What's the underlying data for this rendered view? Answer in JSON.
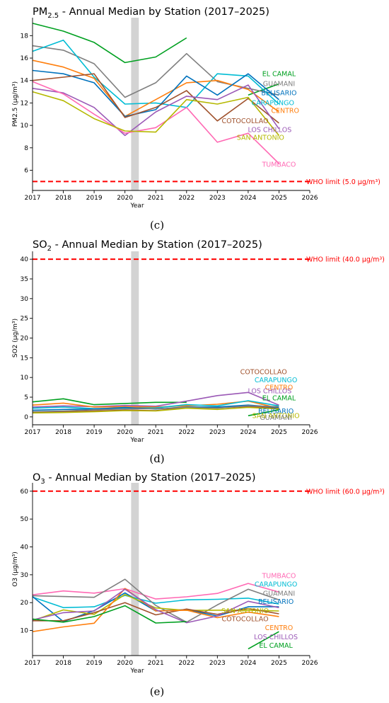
{
  "colors": {
    "EL CAMAL": "#00a020",
    "GUAMANI": "#7f7f7f",
    "BELISARIO": "#0072bd",
    "CARAPUNGO": "#00bcd4",
    "CENTRO": "#ff7f0e",
    "COTOCOLLAO": "#a0522d",
    "LOS CHILLOS": "#9b59b6",
    "SAN ANTONIO": "#b5b800",
    "TUMBACO": "#ff69b4",
    "who_line": "#ff0000",
    "covid_band": "#d3d3d3"
  },
  "chart_data": [
    {
      "type": "line",
      "panel_label": "(c)",
      "title_main": "PM",
      "title_sub": "2.5",
      "title_rest": " - Annual Median by Station (2017–2025)",
      "xlabel": "Year",
      "ylabel": "PM2.5 (µg/m³)",
      "xlim": [
        2017,
        2026
      ],
      "ylim": [
        4.2,
        19.6
      ],
      "xticks": [
        2017,
        2018,
        2019,
        2020,
        2021,
        2022,
        2023,
        2024,
        2025,
        2026
      ],
      "yticks": [
        6,
        8,
        10,
        12,
        14,
        16,
        18
      ],
      "reference_line": {
        "value": 5.0,
        "label": "WHO limit (5.0 µg/m³)"
      },
      "shaded_span": [
        2020.2,
        2020.45
      ],
      "series": [
        {
          "name": "EL CAMAL",
          "x": [
            2017,
            2018,
            2019,
            2020,
            2021,
            2022
          ],
          "values": [
            19.1,
            18.4,
            17.4,
            15.6,
            16.1,
            17.8
          ]
        },
        {
          "name": "EL CAMAL",
          "x": [
            2024,
            2025
          ],
          "values": [
            12.7,
            13.7
          ]
        },
        {
          "name": "GUAMANI",
          "x": [
            2017,
            2018,
            2019,
            2020,
            2021,
            2022,
            2023,
            2024,
            2025
          ],
          "values": [
            17.1,
            16.7,
            15.5,
            12.5,
            13.8,
            16.4,
            13.9,
            13.3,
            12.7
          ]
        },
        {
          "name": "CARAPUNGO",
          "x": [
            2017,
            2018,
            2019,
            2020,
            2021,
            2022,
            2023,
            2024,
            2025
          ],
          "values": [
            16.6,
            17.6,
            14.3,
            11.9,
            12.0,
            11.6,
            14.6,
            14.4,
            11.9
          ]
        },
        {
          "name": "CENTRO",
          "x": [
            2017,
            2018,
            2019,
            2020,
            2021,
            2022,
            2023,
            2024,
            2025
          ],
          "values": [
            15.8,
            15.2,
            14.2,
            10.8,
            12.3,
            13.8,
            14.0,
            13.2,
            11.2
          ]
        },
        {
          "name": "BELISARIO",
          "x": [
            2017,
            2018,
            2019,
            2020,
            2021,
            2022,
            2023,
            2024,
            2025
          ],
          "values": [
            14.9,
            14.6,
            13.8,
            10.8,
            11.4,
            14.4,
            12.7,
            14.6,
            12.3
          ]
        },
        {
          "name": "COTOCOLLAO",
          "x": [
            2017,
            2018,
            2019,
            2020,
            2021,
            2022,
            2023,
            2024,
            2025
          ],
          "values": [
            14.0,
            14.3,
            14.6,
            10.7,
            11.6,
            13.1,
            10.4,
            12.4,
            10.2
          ]
        },
        {
          "name": "LOS CHILLOS",
          "x": [
            2017,
            2018,
            2019,
            2020,
            2021,
            2022,
            2023,
            2024,
            2025
          ],
          "values": [
            13.3,
            12.9,
            11.6,
            9.1,
            11.2,
            12.6,
            12.3,
            13.6,
            9.7
          ]
        },
        {
          "name": "TUMBACO",
          "x": [
            2017,
            2018,
            2019,
            2020,
            2021,
            2022,
            2023,
            2024,
            2025
          ],
          "values": [
            13.9,
            12.8,
            11.0,
            9.3,
            9.8,
            11.6,
            8.5,
            9.3,
            6.6
          ]
        },
        {
          "name": "SAN ANTONIO",
          "x": [
            2017,
            2018,
            2019,
            2020,
            2021,
            2022,
            2023,
            2024,
            2025
          ],
          "values": [
            13.0,
            12.2,
            10.6,
            9.5,
            9.4,
            12.3,
            11.9,
            12.5,
            9.1
          ]
        }
      ],
      "labels": [
        {
          "text": "EL CAMAL",
          "color": "EL CAMAL",
          "x": 2025.0,
          "y": 14.4
        },
        {
          "text": "GUAMANI",
          "color": "GUAMANI",
          "x": 2025.0,
          "y": 13.5
        },
        {
          "text": "BELISARIO",
          "color": "BELISARIO",
          "x": 2025.0,
          "y": 12.7
        },
        {
          "text": "CARAPUNGO",
          "color": "CARAPUNGO",
          "x": 2024.8,
          "y": 11.8
        },
        {
          "text": "CENTRO",
          "color": "CENTRO",
          "x": 2025.2,
          "y": 11.1
        },
        {
          "text": "COTOCOLLAO",
          "color": "COTOCOLLAO",
          "x": 2023.9,
          "y": 10.2
        },
        {
          "text": "LOS CHILLOS",
          "color": "LOS CHILLOS",
          "x": 2024.7,
          "y": 9.4
        },
        {
          "text": "SAN ANTONIO",
          "color": "SAN ANTONIO",
          "x": 2024.4,
          "y": 8.7
        },
        {
          "text": "TUMBACO",
          "color": "TUMBACO",
          "x": 2025.0,
          "y": 6.3
        }
      ]
    },
    {
      "type": "line",
      "panel_label": "(d)",
      "title_main": "SO",
      "title_sub": "2",
      "title_rest": " - Annual Median by Station (2017–2025)",
      "xlabel": "Year",
      "ylabel": "SO2 (µg/m³)",
      "xlim": [
        2017,
        2026
      ],
      "ylim": [
        -2,
        42
      ],
      "xticks": [
        2017,
        2018,
        2019,
        2020,
        2021,
        2022,
        2023,
        2024,
        2025,
        2026
      ],
      "yticks": [
        0,
        5,
        10,
        15,
        20,
        25,
        30,
        35,
        40
      ],
      "reference_line": {
        "value": 40.0,
        "label": "WHO limit (40.0 µg/m³)"
      },
      "shaded_span": [
        2020.2,
        2020.45
      ],
      "series": [
        {
          "name": "EL CAMAL",
          "x": [
            2017,
            2018,
            2019,
            2020,
            2021,
            2022
          ],
          "values": [
            3.8,
            4.6,
            3.1,
            3.4,
            3.7,
            3.7
          ]
        },
        {
          "name": "EL CAMAL",
          "x": [
            2024,
            2025
          ],
          "values": [
            0.3,
            1.8
          ]
        },
        {
          "name": "LOS CHILLOS",
          "x": [
            2017,
            2018,
            2019,
            2020,
            2021,
            2022,
            2023,
            2024,
            2025
          ],
          "values": [
            2.5,
            2.8,
            2.6,
            2.9,
            2.7,
            4.0,
            5.4,
            6.2,
            3.0
          ]
        },
        {
          "name": "CENTRO",
          "x": [
            2017,
            2018,
            2019,
            2020,
            2021,
            2022,
            2023,
            2024,
            2025
          ],
          "values": [
            3.0,
            3.5,
            2.5,
            2.6,
            2.5,
            2.8,
            3.2,
            4.0,
            2.2
          ]
        },
        {
          "name": "COTOCOLLAO",
          "x": [
            2017,
            2018,
            2019,
            2020,
            2021,
            2022,
            2023,
            2024,
            2025
          ],
          "values": [
            1.2,
            1.3,
            1.5,
            1.7,
            1.6,
            2.4,
            2.3,
            2.6,
            2.3
          ]
        },
        {
          "name": "CARAPUNGO",
          "x": [
            2017,
            2018,
            2019,
            2020,
            2021,
            2022,
            2023,
            2024,
            2025
          ],
          "values": [
            2.2,
            2.5,
            2.1,
            2.2,
            2.3,
            3.1,
            2.8,
            4.1,
            2.8
          ]
        },
        {
          "name": "BELISARIO",
          "x": [
            2017,
            2018,
            2019,
            2020,
            2021,
            2022,
            2023,
            2024,
            2025
          ],
          "values": [
            1.7,
            1.9,
            2.0,
            2.4,
            2.0,
            2.5,
            2.5,
            3.0,
            2.4
          ]
        },
        {
          "name": "GUAMANI",
          "x": [
            2017,
            2018,
            2019,
            2020,
            2021,
            2022,
            2023,
            2024,
            2025
          ],
          "values": [
            1.3,
            1.5,
            1.8,
            2.0,
            2.1,
            2.4,
            2.2,
            2.8,
            2.6
          ]
        },
        {
          "name": "SAN ANTONIO",
          "x": [
            2017,
            2018,
            2019,
            2020,
            2021,
            2022,
            2023,
            2024,
            2025
          ],
          "values": [
            1.0,
            1.1,
            1.3,
            1.6,
            1.5,
            2.2,
            1.9,
            2.4,
            2.0
          ]
        }
      ],
      "labels": [
        {
          "text": "COTOCOLLAO",
          "color": "COTOCOLLAO",
          "x": 2024.5,
          "y": 10.8
        },
        {
          "text": "CARAPUNGO",
          "color": "CARAPUNGO",
          "x": 2024.9,
          "y": 8.8
        },
        {
          "text": "CENTRO",
          "color": "CENTRO",
          "x": 2025.0,
          "y": 6.9
        },
        {
          "text": "LOS CHILLOS",
          "color": "LOS CHILLOS",
          "x": 2024.7,
          "y": 6.0
        },
        {
          "text": "EL CAMAL",
          "color": "EL CAMAL",
          "x": 2025.0,
          "y": 4.2
        },
        {
          "text": "BELISARIO",
          "color": "BELISARIO",
          "x": 2024.9,
          "y": 0.9
        },
        {
          "text": "SAN ANTONIO",
          "color": "SAN ANTONIO",
          "x": 2024.9,
          "y": -0.3
        },
        {
          "text": "GUAMANI",
          "color": "GUAMANI",
          "x": 2024.9,
          "y": -0.7
        }
      ]
    },
    {
      "type": "line",
      "panel_label": "(e)",
      "title_main": "O",
      "title_sub": "3",
      "title_rest": " - Annual Median by Station (2017–2025)",
      "xlabel": "Year",
      "ylabel": "O3 (µg/m³)",
      "xlim": [
        2017,
        2026
      ],
      "ylim": [
        1,
        63
      ],
      "xticks": [
        2017,
        2018,
        2019,
        2020,
        2021,
        2022,
        2023,
        2024,
        2025,
        2026
      ],
      "yticks": [
        10,
        20,
        30,
        40,
        50,
        60
      ],
      "reference_line": {
        "value": 60.0,
        "label": "WHO limit (60.0 µg/m³)"
      },
      "shaded_span": [
        2020.2,
        2020.45
      ],
      "series": [
        {
          "name": "TUMBACO",
          "x": [
            2017,
            2018,
            2019,
            2020,
            2021,
            2022,
            2023,
            2024,
            2025
          ],
          "values": [
            22.8,
            24.2,
            23.4,
            25.0,
            21.3,
            22.1,
            23.3,
            26.9,
            23.8
          ]
        },
        {
          "name": "CARAPUNGO",
          "x": [
            2017,
            2018,
            2019,
            2020,
            2021,
            2022,
            2023,
            2024,
            2025
          ],
          "values": [
            22.0,
            18.2,
            18.5,
            22.6,
            19.8,
            21.0,
            21.2,
            21.6,
            19.5
          ]
        },
        {
          "name": "GUAMANI",
          "x": [
            2017,
            2018,
            2019,
            2020,
            2021,
            2022,
            2023,
            2024,
            2025
          ],
          "values": [
            22.5,
            22.2,
            21.9,
            28.4,
            19.0,
            13.0,
            19.2,
            24.8,
            21.0
          ]
        },
        {
          "name": "BELISARIO",
          "x": [
            2017,
            2018,
            2019,
            2020,
            2021,
            2022,
            2023,
            2024,
            2025
          ],
          "values": [
            22.2,
            13.2,
            17.1,
            23.5,
            17.0,
            17.5,
            15.2,
            18.5,
            18.5
          ]
        },
        {
          "name": "SAN ANTONIO",
          "x": [
            2017,
            2018,
            2019,
            2020,
            2021,
            2022,
            2023,
            2024,
            2025
          ],
          "values": [
            13.5,
            17.4,
            15.8,
            22.9,
            18.1,
            17.2,
            17.3,
            17.3,
            17.0
          ]
        },
        {
          "name": "COTOCOLLAO",
          "x": [
            2017,
            2018,
            2019,
            2020,
            2021,
            2022,
            2023,
            2024,
            2025
          ],
          "values": [
            13.5,
            13.5,
            16.4,
            20.0,
            15.6,
            17.7,
            15.8,
            17.9,
            16.0
          ]
        },
        {
          "name": "CENTRO",
          "x": [
            2017,
            2018,
            2019,
            2020,
            2021,
            2022,
            2023,
            2024,
            2025
          ],
          "values": [
            9.6,
            11.3,
            12.6,
            25.1,
            17.0,
            17.3,
            14.6,
            16.6,
            15.0
          ]
        },
        {
          "name": "LOS CHILLOS",
          "x": [
            2017,
            2018,
            2019,
            2020,
            2021,
            2022,
            2023,
            2024,
            2025
          ],
          "values": [
            13.8,
            16.4,
            17.0,
            24.8,
            17.5,
            12.8,
            15.2,
            20.5,
            18.2
          ]
        },
        {
          "name": "EL CAMAL",
          "x": [
            2017,
            2018,
            2019,
            2020,
            2021,
            2022
          ],
          "values": [
            14.1,
            13.0,
            15.0,
            18.9,
            12.7,
            13.2
          ]
        },
        {
          "name": "EL CAMAL",
          "x": [
            2024,
            2025
          ],
          "values": [
            3.4,
            9.6
          ]
        }
      ],
      "labels": [
        {
          "text": "TUMBACO",
          "color": "TUMBACO",
          "x": 2025.0,
          "y": 28.8
        },
        {
          "text": "CARAPUNGO",
          "color": "CARAPUNGO",
          "x": 2024.9,
          "y": 25.8
        },
        {
          "text": "GUAMANI",
          "color": "GUAMANI",
          "x": 2025.0,
          "y": 22.5
        },
        {
          "text": "BELISARIO",
          "color": "BELISARIO",
          "x": 2024.9,
          "y": 19.5
        },
        {
          "text": "SAN ANTONIO",
          "color": "SAN ANTONIO",
          "x": 2023.9,
          "y": 16.2
        },
        {
          "text": "COTOCOLLAO",
          "color": "COTOCOLLAO",
          "x": 2023.9,
          "y": 13.3
        },
        {
          "text": "CENTRO",
          "color": "CENTRO",
          "x": 2025.0,
          "y": 10.2
        },
        {
          "text": "LOS CHILLOS",
          "color": "LOS CHILLOS",
          "x": 2024.9,
          "y": 6.8
        },
        {
          "text": "EL CAMAL",
          "color": "EL CAMAL",
          "x": 2024.9,
          "y": 3.8
        }
      ]
    }
  ]
}
